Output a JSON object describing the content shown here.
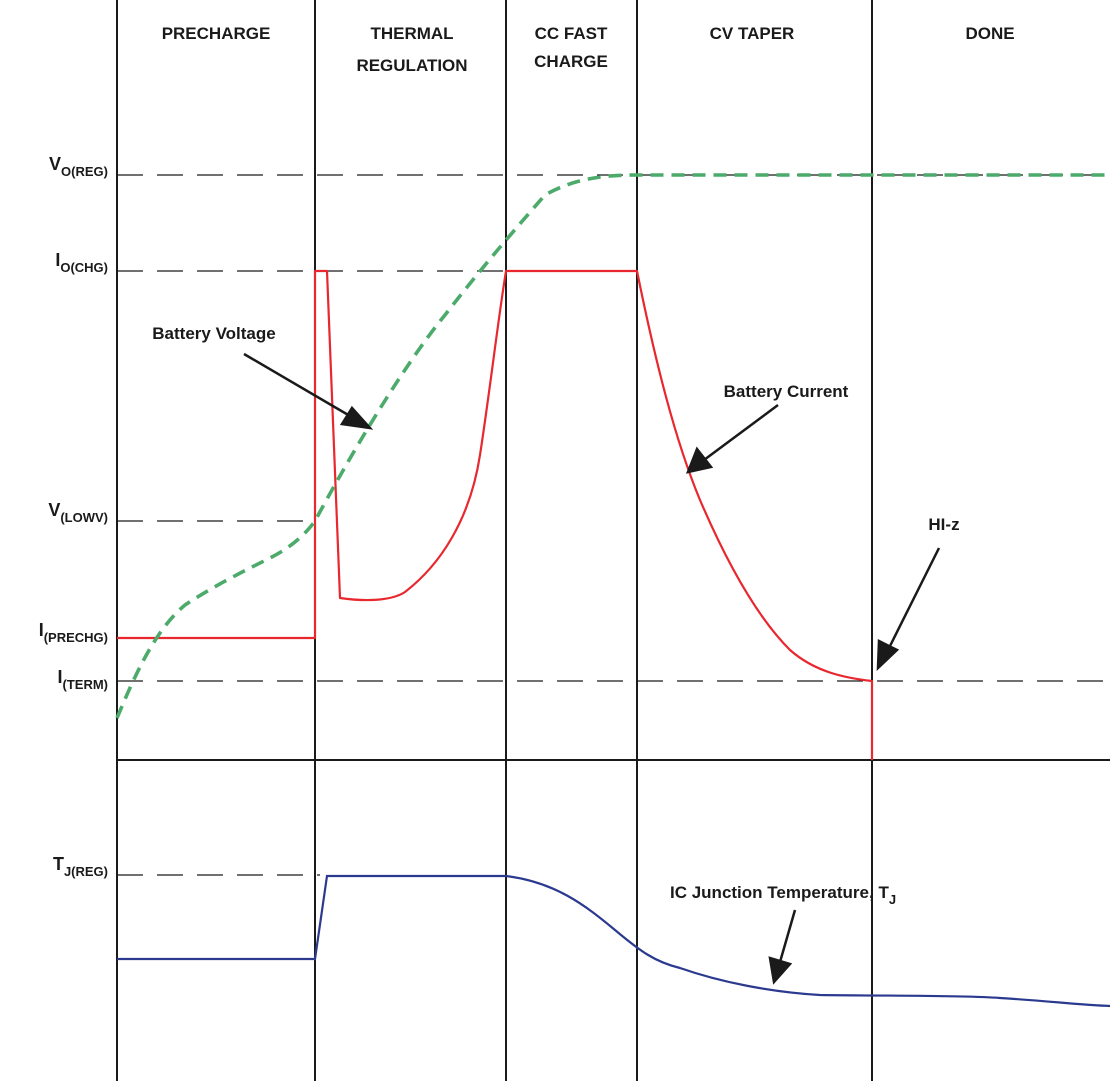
{
  "phases": [
    {
      "lines": [
        "PRECHARGE"
      ]
    },
    {
      "lines": [
        "THERMAL",
        "REGULATION"
      ]
    },
    {
      "lines": [
        "CC FAST",
        "CHARGE"
      ]
    },
    {
      "lines": [
        "CV TAPER"
      ]
    },
    {
      "lines": [
        "DONE"
      ]
    }
  ],
  "levels": {
    "vo_reg": {
      "main": "V",
      "sub": "O(REG)"
    },
    "io_chg": {
      "main": "I",
      "sub": "O(CHG)"
    },
    "v_lowv": {
      "main": "V",
      "sub": "(LOWV)"
    },
    "i_prechg": {
      "main": "I",
      "sub": "(PRECHG)"
    },
    "i_term": {
      "main": "I",
      "sub": "(TERM)"
    },
    "tj_reg": {
      "main": "T",
      "sub": "J(REG)"
    }
  },
  "annotations": {
    "battery_voltage": "Battery Voltage",
    "battery_current": "Battery Current",
    "hi_z": "HI-z",
    "junction_temp": {
      "main": "IC Junction Temperature, T",
      "sub": "J"
    }
  },
  "colors": {
    "voltage": "#4caa6a",
    "current": "#e8272e",
    "temperature": "#2b3a8f",
    "grid": "#1a1a1a"
  }
}
